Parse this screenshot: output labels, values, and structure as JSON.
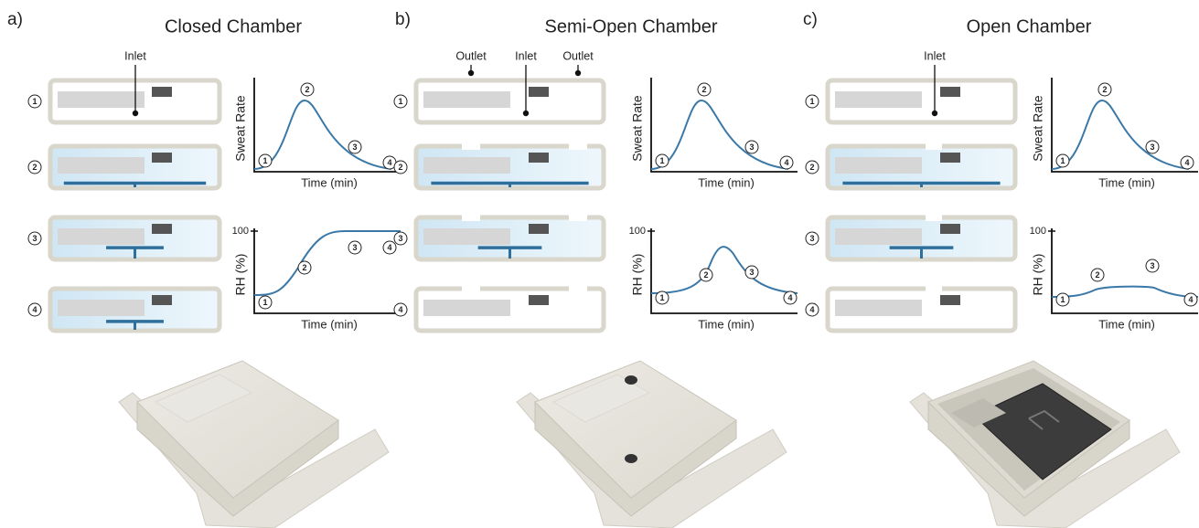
{
  "panels": [
    {
      "label": "a)",
      "title": "Closed Chamber",
      "ports": [
        "Inlet"
      ],
      "steps": [
        "1",
        "2",
        "3",
        "4"
      ],
      "sweat_rate": {
        "y_label": "Sweat Rate",
        "x_label": "Time (min)",
        "markers": [
          "1",
          "2",
          "3",
          "4"
        ]
      },
      "rh": {
        "y_label": "RH (%)",
        "x_label": "Time (min)",
        "tick": "100",
        "markers": [
          "1",
          "2",
          "3",
          "4"
        ]
      }
    },
    {
      "label": "b)",
      "title": "Semi-Open Chamber",
      "ports": [
        "Outlet",
        "Inlet",
        "Outlet"
      ],
      "steps": [
        "1",
        "2",
        "3",
        "4"
      ],
      "sweat_rate": {
        "y_label": "Sweat Rate",
        "x_label": "Time (min)",
        "markers": [
          "1",
          "2",
          "3",
          "4"
        ]
      },
      "rh": {
        "y_label": "RH (%)",
        "x_label": "Time (min)",
        "tick": "100",
        "markers": [
          "1",
          "2",
          "3",
          "4"
        ]
      }
    },
    {
      "label": "c)",
      "title": "Open Chamber",
      "ports": [
        "Inlet"
      ],
      "steps": [
        "1",
        "2",
        "3",
        "4"
      ],
      "sweat_rate": {
        "y_label": "Sweat Rate",
        "x_label": "Time (min)",
        "markers": [
          "1",
          "2",
          "3",
          "4"
        ]
      },
      "rh": {
        "y_label": "RH (%)",
        "x_label": "Time (min)",
        "tick": "100",
        "markers": [
          "1",
          "2",
          "3",
          "4"
        ]
      }
    }
  ]
}
